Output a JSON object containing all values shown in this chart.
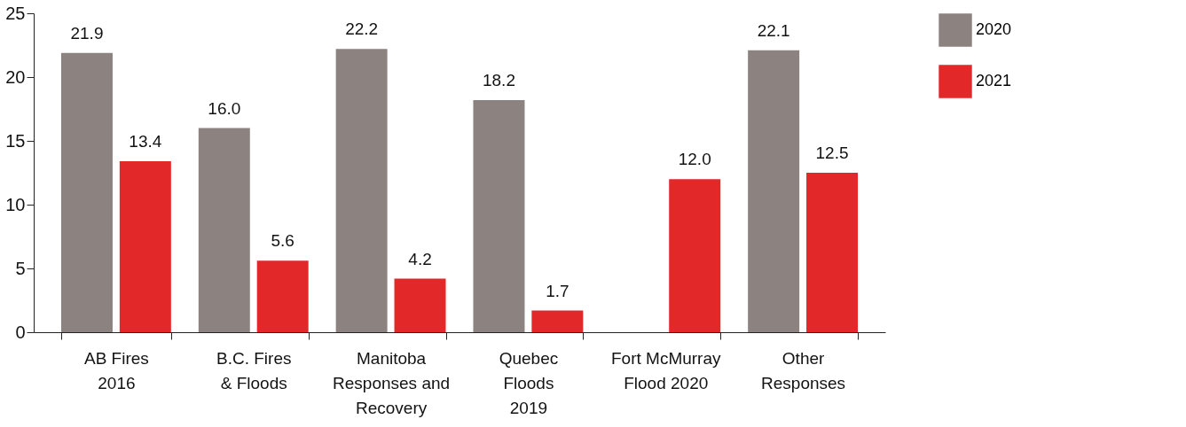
{
  "chart_data": {
    "type": "bar",
    "categories": [
      "AB Fires\n2016",
      "B.C. Fires\n& Floods",
      "Manitoba\nResponses and\nRecovery",
      "Quebec\nFloods\n2019",
      "Fort McMurray\nFlood 2020",
      "Other\nResponses"
    ],
    "series": [
      {
        "name": "2020",
        "color": "#8c8280",
        "values": [
          21.9,
          16.0,
          22.2,
          18.2,
          null,
          22.1
        ],
        "value_labels": [
          "21.9",
          "16.0",
          "22.2",
          "18.2",
          null,
          "22.1"
        ]
      },
      {
        "name": "2021",
        "color": "#e3282a",
        "values": [
          13.4,
          5.6,
          4.2,
          1.7,
          12.0,
          12.5
        ],
        "value_labels": [
          "13.4",
          "5.6",
          "4.2",
          "1.7",
          "12.0",
          "12.5"
        ]
      }
    ],
    "ylim": [
      0,
      25
    ],
    "yticks": [
      0,
      5,
      10,
      15,
      20,
      25
    ],
    "grid": false,
    "legend": "top right"
  }
}
